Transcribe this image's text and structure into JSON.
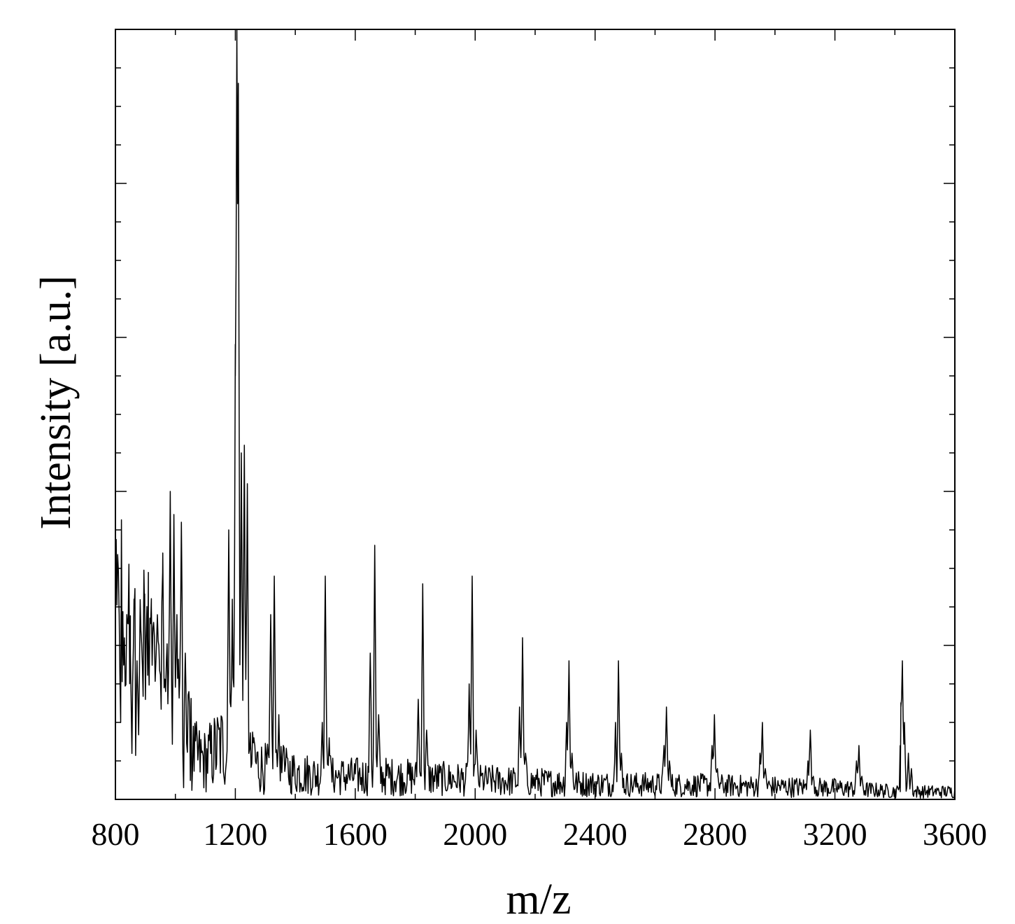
{
  "chart_data": {
    "type": "line",
    "title": "",
    "xlabel": "m/z",
    "ylabel": "Intensity [a.u.]",
    "xlim": [
      800,
      3600
    ],
    "ylim": [
      0,
      100
    ],
    "x_ticks": [
      800,
      1200,
      1600,
      2000,
      2400,
      2800,
      3200,
      3600
    ],
    "x_tick_labels": [
      "800",
      "1200",
      "1600",
      "2000",
      "2400",
      "2800",
      "3200",
      "3600"
    ],
    "y_tick_labels_shown": false,
    "grid": false,
    "legend": "none",
    "line_color": "#000000",
    "baseline": [
      [
        800,
        20
      ],
      [
        850,
        15
      ],
      [
        900,
        17
      ],
      [
        950,
        12
      ],
      [
        1000,
        11
      ],
      [
        1040,
        6
      ],
      [
        1100,
        5
      ],
      [
        1150,
        7
      ],
      [
        1300,
        4
      ],
      [
        1400,
        3.5
      ],
      [
        1500,
        3
      ],
      [
        1700,
        3
      ],
      [
        2000,
        2.5
      ],
      [
        2400,
        2
      ],
      [
        2800,
        1.8
      ],
      [
        3200,
        1.5
      ],
      [
        3420,
        1
      ],
      [
        3600,
        1
      ]
    ],
    "series": [
      {
        "peaks": [
          [
            812,
            25
          ],
          [
            825,
            23
          ],
          [
            838,
            24
          ],
          [
            850,
            19
          ],
          [
            862,
            26
          ],
          [
            872,
            18
          ],
          [
            885,
            22
          ],
          [
            897,
            25
          ],
          [
            910,
            21
          ],
          [
            920,
            25
          ],
          [
            935,
            18
          ],
          [
            945,
            20
          ],
          [
            958,
            32
          ],
          [
            970,
            18
          ],
          [
            983,
            40
          ],
          [
            995,
            37
          ],
          [
            1005,
            24
          ],
          [
            1020,
            36
          ],
          [
            1033,
            19
          ],
          [
            1045,
            14
          ],
          [
            1178,
            35
          ],
          [
            1190,
            26
          ],
          [
            1200,
            55
          ],
          [
            1205,
            100
          ],
          [
            1210,
            93
          ],
          [
            1220,
            45
          ],
          [
            1230,
            46
          ],
          [
            1240,
            41
          ],
          [
            1262,
            8
          ],
          [
            1318,
            24
          ],
          [
            1330,
            29
          ],
          [
            1345,
            11
          ],
          [
            1360,
            7
          ],
          [
            1490,
            10
          ],
          [
            1500,
            29
          ],
          [
            1513,
            8
          ],
          [
            1650,
            19
          ],
          [
            1665,
            33
          ],
          [
            1678,
            11
          ],
          [
            1810,
            13
          ],
          [
            1825,
            28
          ],
          [
            1838,
            9
          ],
          [
            1980,
            15
          ],
          [
            1990,
            29
          ],
          [
            2003,
            9
          ],
          [
            2148,
            12
          ],
          [
            2158,
            21
          ],
          [
            2168,
            6
          ],
          [
            2305,
            10
          ],
          [
            2313,
            18
          ],
          [
            2323,
            6
          ],
          [
            2468,
            10
          ],
          [
            2478,
            18
          ],
          [
            2488,
            6
          ],
          [
            2630,
            7
          ],
          [
            2638,
            12
          ],
          [
            2648,
            5
          ],
          [
            2790,
            7
          ],
          [
            2798,
            11
          ],
          [
            2808,
            4
          ],
          [
            2950,
            6
          ],
          [
            2958,
            10
          ],
          [
            2968,
            4
          ],
          [
            3110,
            5
          ],
          [
            3118,
            9
          ],
          [
            3128,
            3
          ],
          [
            3272,
            5
          ],
          [
            3280,
            7
          ],
          [
            3290,
            3
          ],
          [
            3418,
            1
          ],
          [
            3420,
            12
          ],
          [
            3425,
            18
          ],
          [
            3432,
            10
          ],
          [
            3445,
            6
          ],
          [
            3455,
            4
          ]
        ]
      }
    ]
  }
}
